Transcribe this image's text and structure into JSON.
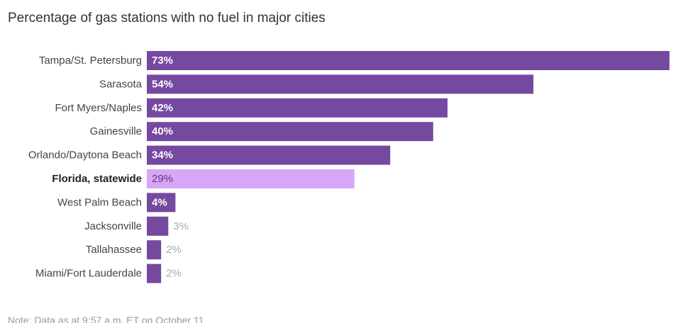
{
  "chart_data": {
    "type": "bar",
    "orientation": "horizontal",
    "title": "Percentage of gas stations with no fuel in major cities",
    "categories": [
      "Tampa/St. Petersburg",
      "Sarasota",
      "Fort Myers/Naples",
      "Gainesville",
      "Orlando/Daytona Beach",
      "Florida, statewide",
      "West Palm Beach",
      "Jacksonville",
      "Tallahassee",
      "Miami/Fort Lauderdale"
    ],
    "values": [
      73,
      54,
      42,
      40,
      34,
      29,
      4,
      3,
      2,
      2
    ],
    "value_labels": [
      "73%",
      "54%",
      "42%",
      "40%",
      "34%",
      "29%",
      "4%",
      "3%",
      "2%",
      "2%"
    ],
    "highlight_category": "Florida, statewide",
    "xlim": [
      0,
      73
    ],
    "xlabel": "",
    "ylabel": "",
    "grid": false,
    "legend": "none",
    "colors": {
      "bar": "#7549a0",
      "highlight_bar": "#d9a6f7",
      "label_inside": "#ffffff",
      "label_highlight": "#5a3a80",
      "label_outside": "#aaaaaa"
    },
    "note": "Note: Data as at 9:57 a.m. ET on October 11"
  }
}
